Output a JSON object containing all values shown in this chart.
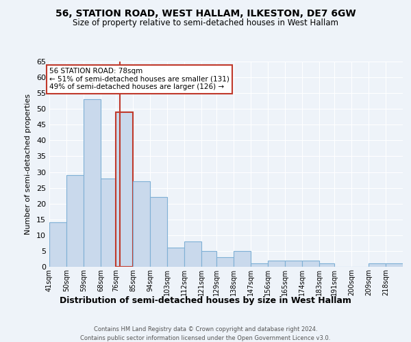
{
  "title": "56, STATION ROAD, WEST HALLAM, ILKESTON, DE7 6GW",
  "subtitle": "Size of property relative to semi-detached houses in West Hallam",
  "xlabel": "Distribution of semi-detached houses by size in West Hallam",
  "ylabel": "Number of semi-detached properties",
  "footer_line1": "Contains HM Land Registry data © Crown copyright and database right 2024.",
  "footer_line2": "Contains public sector information licensed under the Open Government Licence v3.0.",
  "annotation_title": "56 STATION ROAD: 78sqm",
  "annotation_line1": "← 51% of semi-detached houses are smaller (131)",
  "annotation_line2": "49% of semi-detached houses are larger (126) →",
  "property_size": 78,
  "bar_left_edges": [
    41,
    50,
    59,
    68,
    76,
    85,
    94,
    103,
    112,
    121,
    129,
    138,
    147,
    156,
    165,
    174,
    183,
    191,
    200,
    209,
    218
  ],
  "bar_widths": [
    9,
    9,
    9,
    8,
    9,
    9,
    9,
    9,
    9,
    8,
    9,
    9,
    9,
    9,
    9,
    9,
    8,
    9,
    9,
    9,
    9
  ],
  "bar_heights": [
    14,
    29,
    53,
    28,
    49,
    27,
    22,
    6,
    8,
    5,
    3,
    5,
    1,
    2,
    2,
    2,
    1,
    0,
    0,
    1,
    1
  ],
  "tick_labels": [
    "41sqm",
    "50sqm",
    "59sqm",
    "68sqm",
    "76sqm",
    "85sqm",
    "94sqm",
    "103sqm",
    "112sqm",
    "121sqm",
    "129sqm",
    "138sqm",
    "147sqm",
    "156sqm",
    "165sqm",
    "174sqm",
    "183sqm",
    "191sqm",
    "200sqm",
    "209sqm",
    "218sqm"
  ],
  "bar_color": "#c9d9ec",
  "bar_edge_color": "#7fb0d5",
  "highlight_bar_edge_color": "#c0392b",
  "vline_color": "#c0392b",
  "vline_x": 78,
  "highlight_bar_index": 4,
  "annotation_box_color": "#ffffff",
  "annotation_box_edge_color": "#c0392b",
  "background_color": "#eef3f9",
  "grid_color": "#ffffff",
  "ylim": [
    0,
    65
  ],
  "yticks": [
    0,
    5,
    10,
    15,
    20,
    25,
    30,
    35,
    40,
    45,
    50,
    55,
    60,
    65
  ]
}
